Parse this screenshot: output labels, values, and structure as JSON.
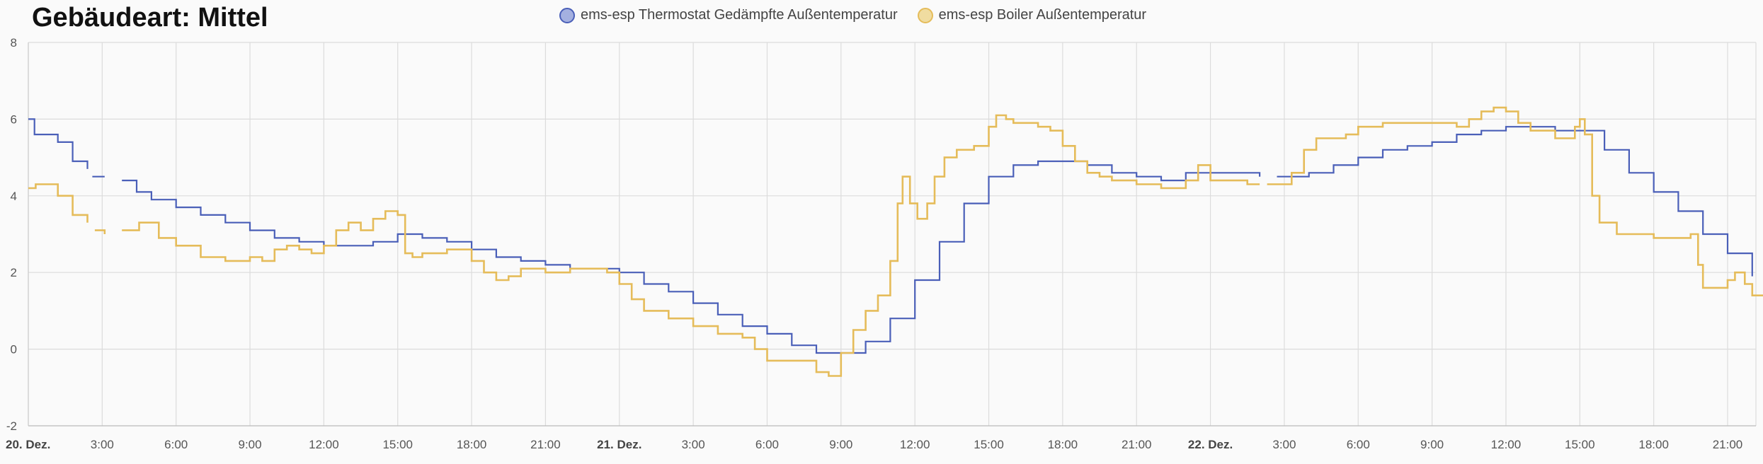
{
  "chart_data": {
    "type": "line",
    "title": "Gebäudeart: Mittel",
    "ylim": [
      -2,
      8
    ],
    "yticks": [
      -2,
      0,
      2,
      4,
      6,
      8
    ],
    "xlim": [
      0,
      70
    ],
    "xticks": [
      {
        "h": 0,
        "label": "20. Dez.",
        "major": true
      },
      {
        "h": 3,
        "label": "3:00"
      },
      {
        "h": 6,
        "label": "6:00"
      },
      {
        "h": 9,
        "label": "9:00"
      },
      {
        "h": 12,
        "label": "12:00"
      },
      {
        "h": 15,
        "label": "15:00"
      },
      {
        "h": 18,
        "label": "18:00"
      },
      {
        "h": 21,
        "label": "21:00"
      },
      {
        "h": 24,
        "label": "21. Dez.",
        "major": true
      },
      {
        "h": 27,
        "label": "3:00"
      },
      {
        "h": 30,
        "label": "6:00"
      },
      {
        "h": 33,
        "label": "9:00"
      },
      {
        "h": 36,
        "label": "12:00"
      },
      {
        "h": 39,
        "label": "15:00"
      },
      {
        "h": 42,
        "label": "18:00"
      },
      {
        "h": 45,
        "label": "21:00"
      },
      {
        "h": 48,
        "label": "22. Dez.",
        "major": true
      },
      {
        "h": 51,
        "label": "3:00"
      },
      {
        "h": 54,
        "label": "6:00"
      },
      {
        "h": 57,
        "label": "9:00"
      },
      {
        "h": 60,
        "label": "12:00"
      },
      {
        "h": 63,
        "label": "15:00"
      },
      {
        "h": 66,
        "label": "18:00"
      },
      {
        "h": 69,
        "label": "21:00"
      }
    ],
    "grid": true,
    "legend_position": "top-center",
    "series": [
      {
        "name": "ems-esp Thermostat Gedämpfte Außentemperatur",
        "color": "#4a5fb8",
        "legend_fill": "#a4b0e0",
        "segments": [
          [
            [
              0,
              6.0
            ],
            [
              0.25,
              5.6
            ],
            [
              1.2,
              5.4
            ],
            [
              1.8,
              4.9
            ],
            [
              2.4,
              4.7
            ]
          ],
          [
            [
              2.6,
              4.5
            ],
            [
              3.1,
              4.5
            ]
          ],
          [
            [
              3.8,
              4.4
            ],
            [
              4.4,
              4.1
            ],
            [
              5,
              3.9
            ],
            [
              6,
              3.7
            ],
            [
              7,
              3.5
            ],
            [
              8,
              3.3
            ],
            [
              9,
              3.1
            ],
            [
              10,
              2.9
            ],
            [
              11,
              2.8
            ],
            [
              12,
              2.7
            ],
            [
              13,
              2.7
            ],
            [
              14,
              2.8
            ],
            [
              15,
              3.0
            ],
            [
              16,
              2.9
            ],
            [
              17,
              2.8
            ],
            [
              18,
              2.6
            ],
            [
              19,
              2.4
            ],
            [
              20,
              2.3
            ],
            [
              21,
              2.2
            ],
            [
              22,
              2.1
            ],
            [
              23,
              2.1
            ],
            [
              24,
              2.0
            ],
            [
              25,
              1.7
            ],
            [
              26,
              1.5
            ],
            [
              27,
              1.2
            ],
            [
              28,
              0.9
            ],
            [
              29,
              0.6
            ],
            [
              30,
              0.4
            ],
            [
              31,
              0.1
            ],
            [
              32,
              -0.1
            ],
            [
              33,
              -0.1
            ],
            [
              34,
              0.2
            ],
            [
              35,
              0.8
            ],
            [
              36,
              1.8
            ],
            [
              37,
              2.8
            ],
            [
              38,
              3.8
            ],
            [
              39,
              4.5
            ],
            [
              40,
              4.8
            ],
            [
              41,
              4.9
            ],
            [
              42,
              4.9
            ],
            [
              43,
              4.8
            ],
            [
              44,
              4.6
            ],
            [
              45,
              4.5
            ],
            [
              46,
              4.4
            ],
            [
              47,
              4.6
            ],
            [
              48,
              4.6
            ],
            [
              49,
              4.6
            ],
            [
              50,
              4.5
            ]
          ],
          [
            [
              50.7,
              4.5
            ],
            [
              51,
              4.5
            ],
            [
              52,
              4.6
            ],
            [
              53,
              4.8
            ],
            [
              54,
              5.0
            ],
            [
              55,
              5.2
            ],
            [
              56,
              5.3
            ],
            [
              57,
              5.4
            ],
            [
              58,
              5.6
            ],
            [
              59,
              5.7
            ],
            [
              60,
              5.8
            ],
            [
              61,
              5.8
            ],
            [
              62,
              5.7
            ],
            [
              63,
              5.7
            ],
            [
              64,
              5.2
            ],
            [
              65,
              4.6
            ],
            [
              66,
              4.1
            ],
            [
              67,
              3.6
            ],
            [
              68,
              3.0
            ],
            [
              69,
              2.5
            ],
            [
              70,
              1.9
            ]
          ]
        ]
      },
      {
        "name": "ems-esp Boiler Außentemperatur",
        "color": "#e5bc5a",
        "legend_fill": "#f0dca0",
        "segments": [
          [
            [
              0,
              4.2
            ],
            [
              0.3,
              4.3
            ],
            [
              1.2,
              4.0
            ],
            [
              1.8,
              3.5
            ],
            [
              2.4,
              3.3
            ]
          ],
          [
            [
              2.7,
              3.1
            ],
            [
              3.1,
              3.0
            ]
          ],
          [
            [
              3.8,
              3.1
            ],
            [
              4.5,
              3.3
            ],
            [
              5.3,
              2.9
            ],
            [
              6,
              2.7
            ],
            [
              7,
              2.4
            ],
            [
              8,
              2.3
            ],
            [
              9,
              2.4
            ],
            [
              9.5,
              2.3
            ],
            [
              10,
              2.6
            ],
            [
              10.5,
              2.7
            ],
            [
              11,
              2.6
            ],
            [
              11.5,
              2.5
            ],
            [
              12,
              2.7
            ],
            [
              12.5,
              3.1
            ],
            [
              13,
              3.3
            ],
            [
              13.5,
              3.1
            ],
            [
              14,
              3.4
            ],
            [
              14.5,
              3.6
            ],
            [
              15,
              3.5
            ],
            [
              15.3,
              2.5
            ],
            [
              15.6,
              2.4
            ],
            [
              16,
              2.5
            ],
            [
              17,
              2.6
            ],
            [
              18,
              2.3
            ],
            [
              18.5,
              2.0
            ],
            [
              19,
              1.8
            ],
            [
              19.5,
              1.9
            ],
            [
              20,
              2.1
            ],
            [
              21,
              2.0
            ],
            [
              22,
              2.1
            ],
            [
              23,
              2.1
            ],
            [
              23.5,
              2.0
            ],
            [
              24,
              1.7
            ],
            [
              24.5,
              1.3
            ],
            [
              25,
              1.0
            ],
            [
              26,
              0.8
            ],
            [
              27,
              0.6
            ],
            [
              28,
              0.4
            ],
            [
              29,
              0.3
            ],
            [
              29.5,
              0.0
            ],
            [
              30,
              -0.3
            ],
            [
              31,
              -0.3
            ],
            [
              32,
              -0.6
            ],
            [
              32.5,
              -0.7
            ],
            [
              33,
              -0.1
            ],
            [
              33.5,
              0.5
            ],
            [
              34,
              1.0
            ],
            [
              34.5,
              1.4
            ],
            [
              35,
              2.3
            ],
            [
              35.3,
              3.8
            ],
            [
              35.5,
              4.5
            ],
            [
              35.8,
              3.8
            ],
            [
              36.1,
              3.4
            ],
            [
              36.5,
              3.8
            ],
            [
              36.8,
              4.5
            ],
            [
              37.2,
              5.0
            ],
            [
              37.7,
              5.2
            ],
            [
              38.4,
              5.3
            ],
            [
              39,
              5.8
            ],
            [
              39.3,
              6.1
            ],
            [
              39.7,
              6.0
            ],
            [
              40,
              5.9
            ],
            [
              41,
              5.8
            ],
            [
              41.5,
              5.7
            ],
            [
              42,
              5.3
            ],
            [
              42.5,
              4.9
            ],
            [
              43,
              4.6
            ],
            [
              43.5,
              4.5
            ],
            [
              44,
              4.4
            ],
            [
              45,
              4.3
            ],
            [
              46,
              4.2
            ],
            [
              47,
              4.4
            ],
            [
              47.5,
              4.8
            ],
            [
              47.8,
              4.8
            ],
            [
              48,
              4.4
            ],
            [
              49,
              4.4
            ],
            [
              49.5,
              4.3
            ],
            [
              50,
              4.3
            ]
          ],
          [
            [
              50.3,
              4.3
            ],
            [
              50.8,
              4.3
            ],
            [
              51.3,
              4.6
            ],
            [
              51.8,
              5.2
            ],
            [
              52.3,
              5.5
            ],
            [
              53.5,
              5.6
            ],
            [
              54,
              5.8
            ],
            [
              55,
              5.9
            ],
            [
              56,
              5.9
            ],
            [
              57,
              5.9
            ],
            [
              58,
              5.8
            ],
            [
              58.5,
              6.0
            ],
            [
              59,
              6.2
            ],
            [
              59.5,
              6.3
            ],
            [
              60,
              6.2
            ],
            [
              60.5,
              5.9
            ],
            [
              61,
              5.7
            ],
            [
              62,
              5.5
            ],
            [
              62.8,
              5.8
            ],
            [
              63,
              6.0
            ],
            [
              63.2,
              5.6
            ],
            [
              63.5,
              4.0
            ],
            [
              63.8,
              3.3
            ],
            [
              64.5,
              3.0
            ],
            [
              65,
              3.0
            ],
            [
              66,
              2.9
            ],
            [
              67,
              2.9
            ],
            [
              67.5,
              3.0
            ],
            [
              67.8,
              2.2
            ],
            [
              68,
              1.6
            ],
            [
              68.5,
              1.6
            ],
            [
              69,
              1.8
            ],
            [
              69.3,
              2.0
            ],
            [
              69.7,
              1.7
            ],
            [
              70,
              1.4
            ],
            [
              71,
              1.1
            ],
            [
              72,
              0.8
            ],
            [
              72.5,
              0.7
            ]
          ]
        ]
      }
    ]
  }
}
